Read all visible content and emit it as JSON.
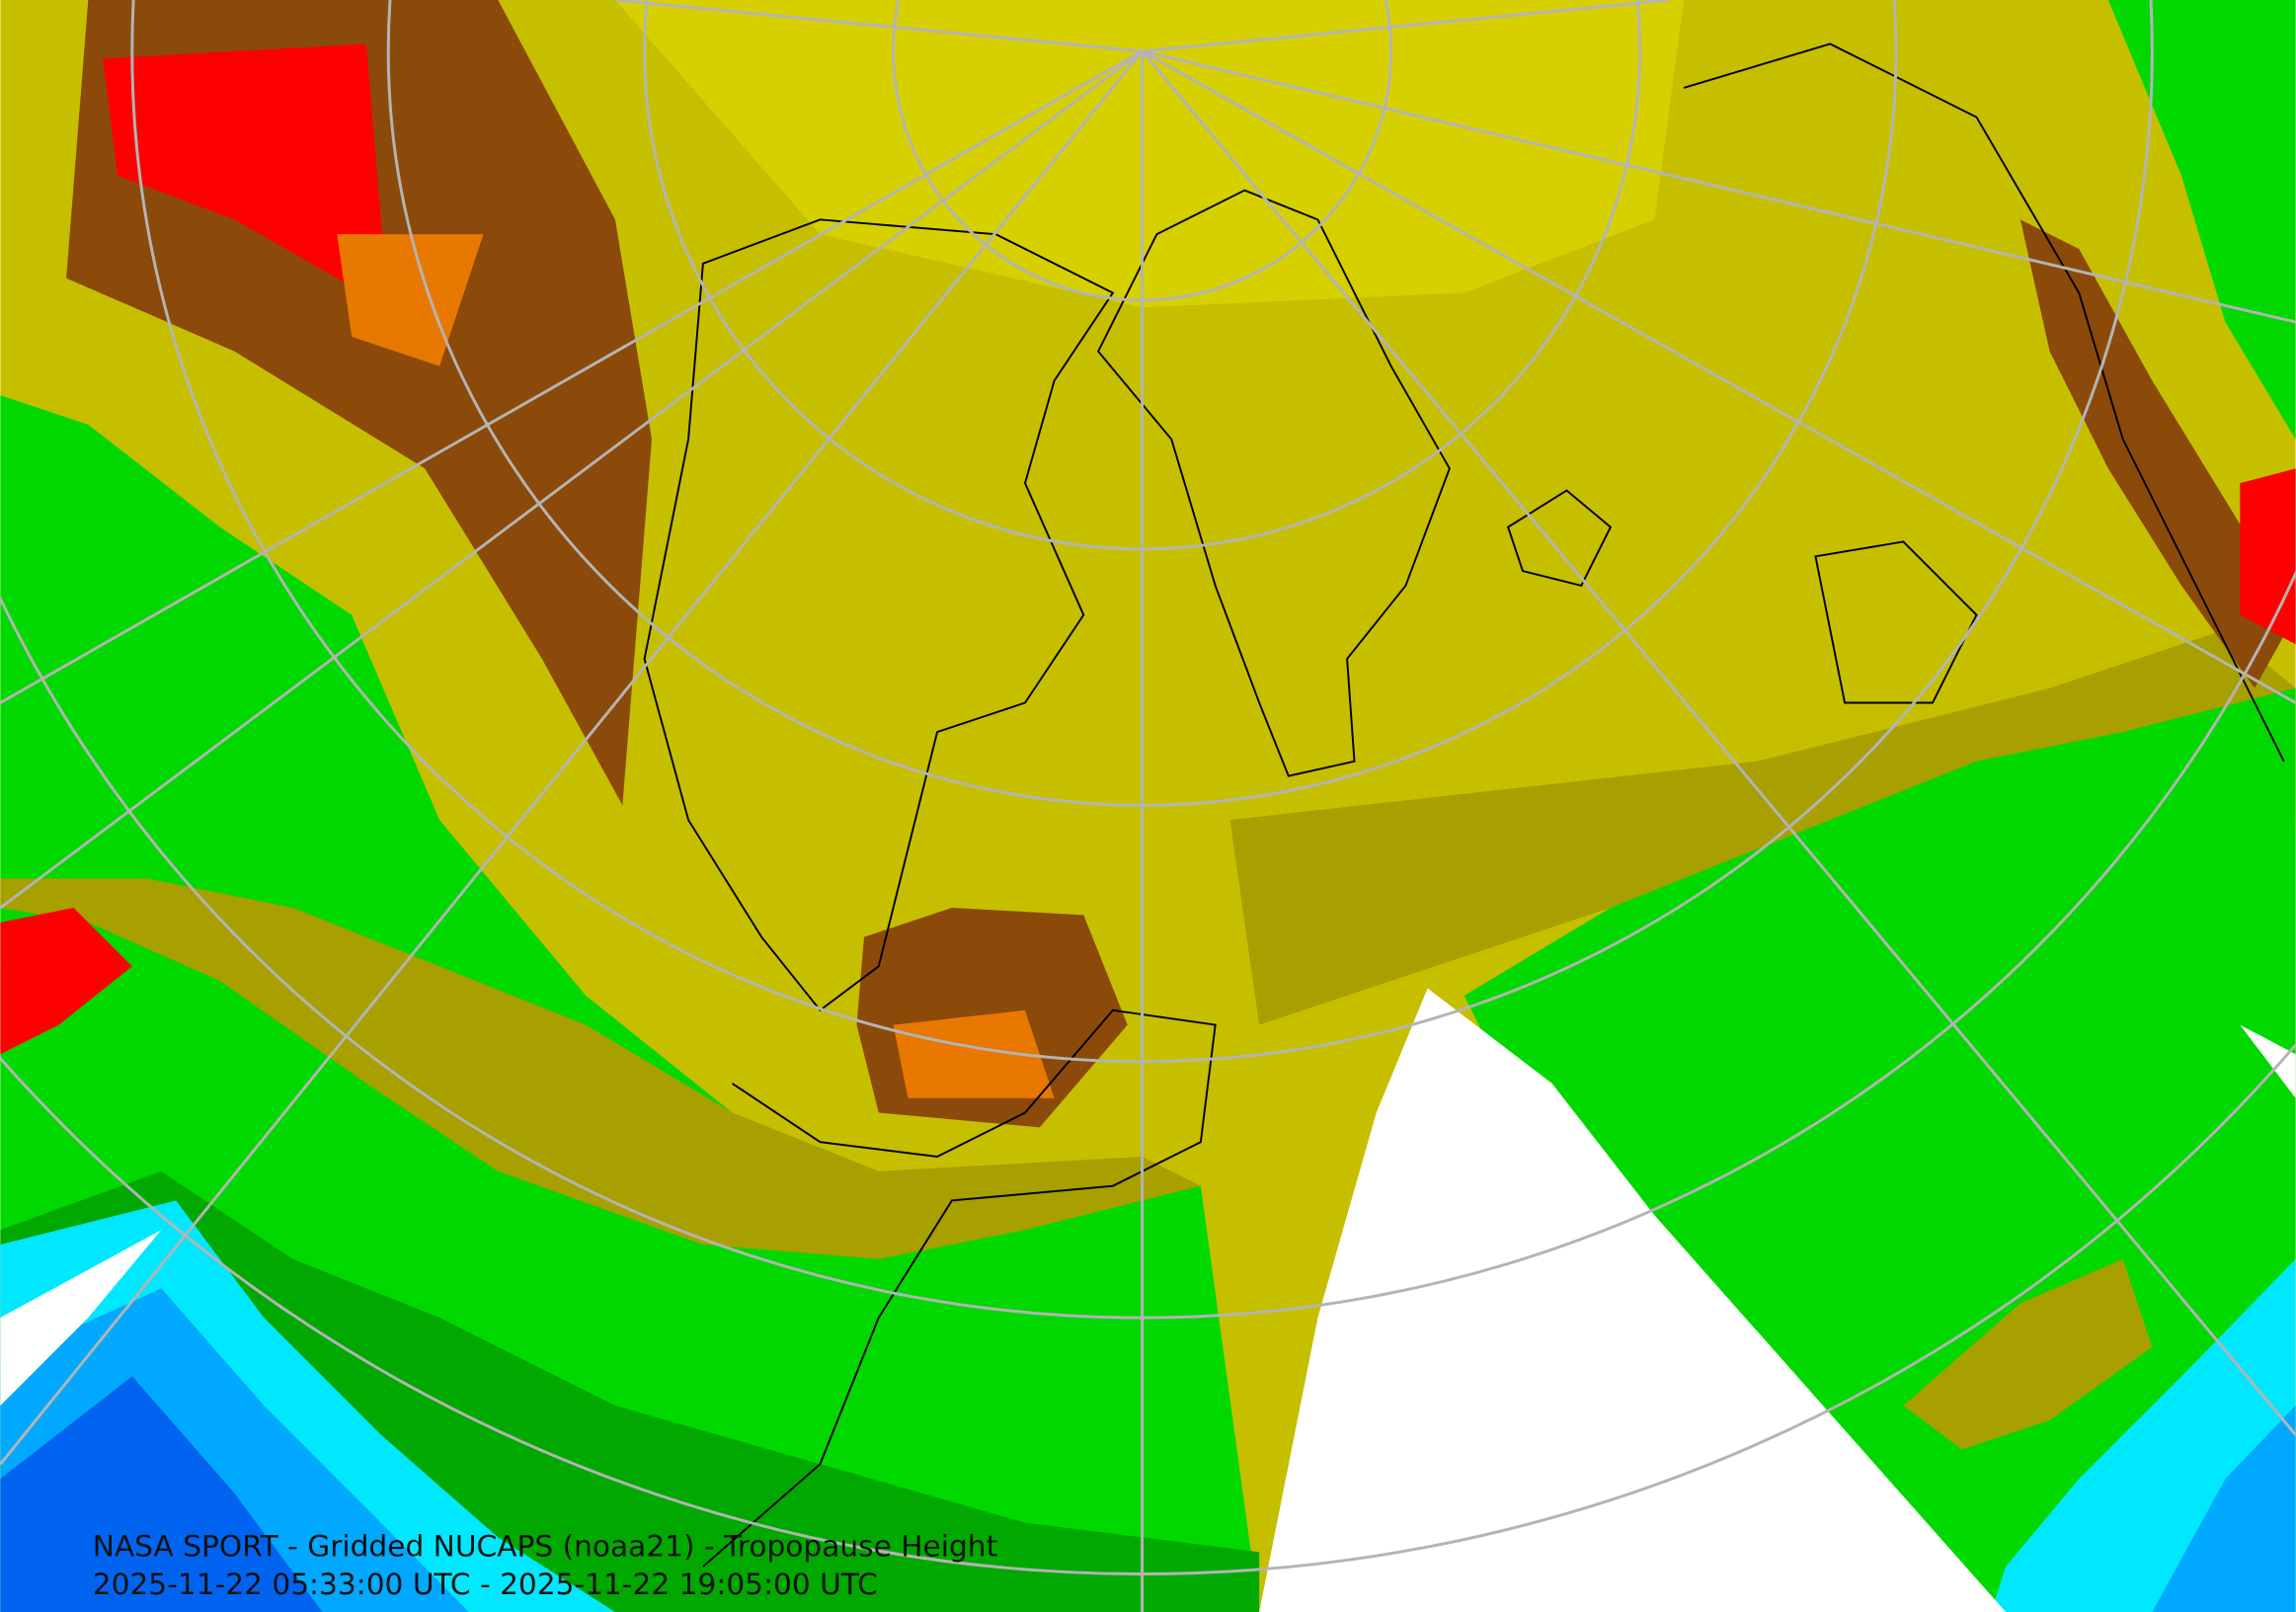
{
  "map": {
    "title": "NASA SPORT - Gridded NUCAPS (noaa21) - Tropopause Height",
    "time_range": "2025-11-22 05:33:00 UTC - 2025-11-22 19:05:00 UTC"
  }
}
